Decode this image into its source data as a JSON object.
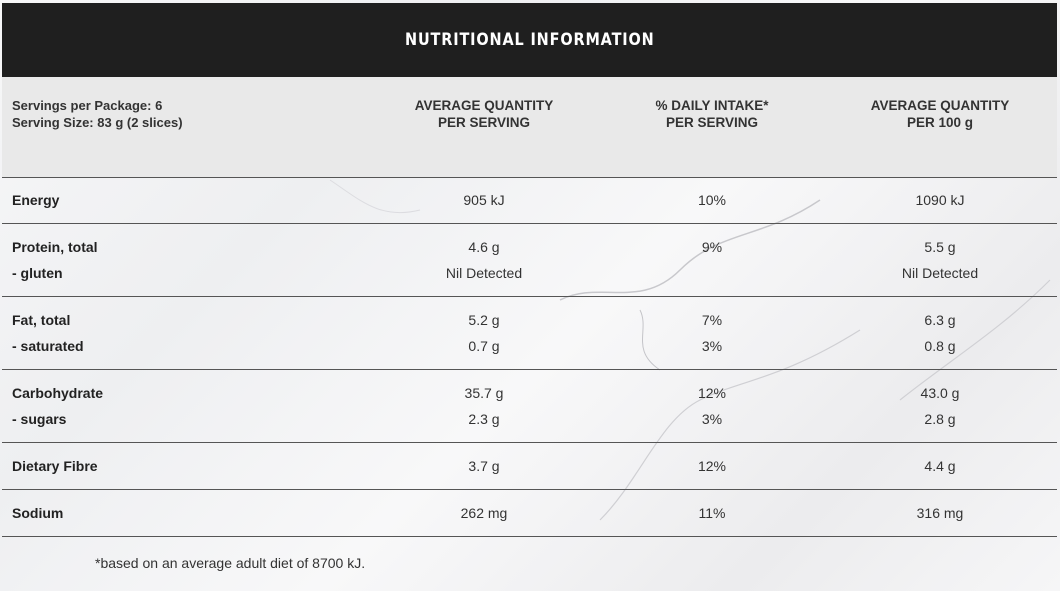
{
  "title": "NUTRITIONAL INFORMATION",
  "servings_per_package": "Servings per Package: 6",
  "serving_size": "Serving Size: 83 g (2 slices)",
  "columns": [
    {
      "line1": "AVERAGE QUANTITY",
      "line2": "PER SERVING"
    },
    {
      "line1": "% DAILY INTAKE*",
      "line2": "PER SERVING"
    },
    {
      "line1": "AVERAGE QUANTITY",
      "line2": "PER 100 g"
    }
  ],
  "rows": [
    {
      "lines": [
        {
          "label": "Energy",
          "v": [
            "905 kJ",
            "10%",
            "1090 kJ"
          ]
        }
      ]
    },
    {
      "lines": [
        {
          "label": "Protein, total",
          "v": [
            "4.6 g",
            "9%",
            "5.5 g"
          ]
        },
        {
          "label": "- gluten",
          "v": [
            "Nil Detected",
            "",
            "Nil Detected"
          ]
        }
      ]
    },
    {
      "lines": [
        {
          "label": "Fat, total",
          "v": [
            "5.2 g",
            "7%",
            "6.3 g"
          ]
        },
        {
          "label": "- saturated",
          "v": [
            "0.7 g",
            "3%",
            "0.8 g"
          ]
        }
      ]
    },
    {
      "lines": [
        {
          "label": "Carbohydrate",
          "v": [
            "35.7 g",
            "12%",
            "43.0 g"
          ]
        },
        {
          "label": "- sugars",
          "v": [
            "2.3 g",
            "3%",
            "2.8 g"
          ]
        }
      ]
    },
    {
      "lines": [
        {
          "label": "Dietary Fibre",
          "v": [
            "3.7 g",
            "12%",
            "4.4 g"
          ]
        }
      ]
    },
    {
      "lines": [
        {
          "label": "Sodium",
          "v": [
            "262 mg",
            "11%",
            "316 mg"
          ]
        }
      ]
    }
  ],
  "footnote": "*based on an average adult diet of 8700 kJ."
}
